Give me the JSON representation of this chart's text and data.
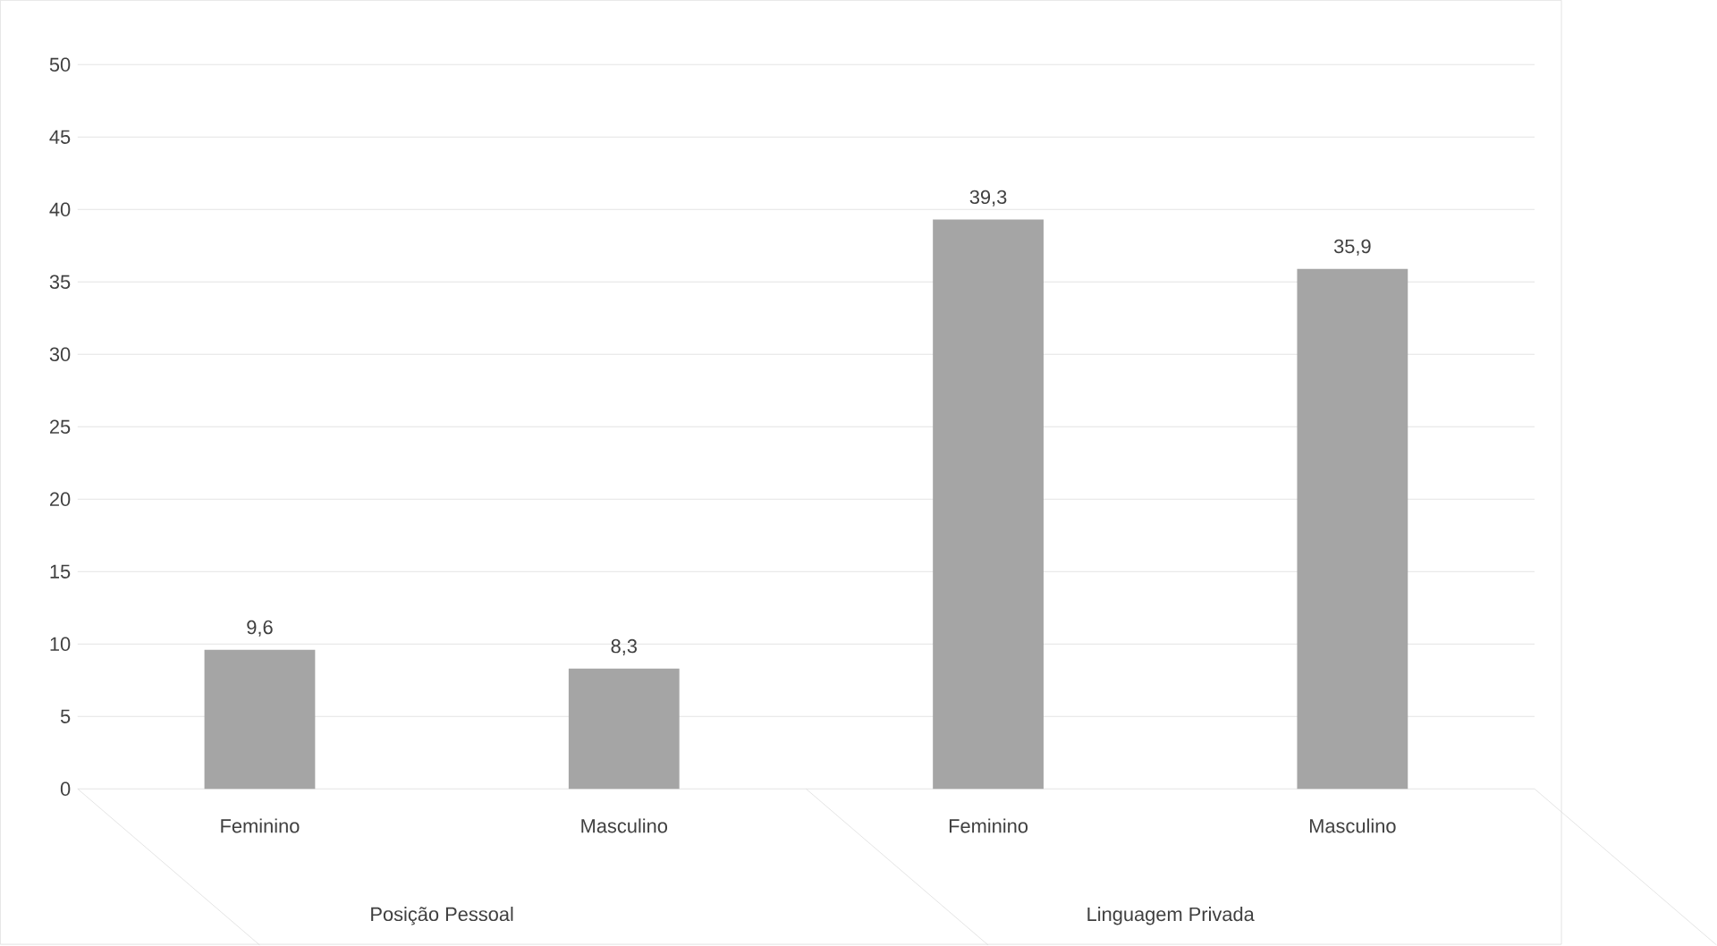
{
  "chart_data": {
    "type": "bar",
    "categories": [
      "Feminino",
      "Masculino",
      "Feminino",
      "Masculino"
    ],
    "values": [
      9.6,
      8.3,
      39.3,
      35.9
    ],
    "value_labels": [
      "9,6",
      "8,3",
      "39,3",
      "35,9"
    ],
    "color": "#a5a5a5",
    "ylim": [
      0,
      50
    ],
    "yticks": [
      0,
      5,
      10,
      15,
      20,
      25,
      30,
      35,
      40,
      45,
      50
    ],
    "grid": "y",
    "annotations": [
      "Posição Pessoal",
      "Linguagem Privada"
    ]
  }
}
